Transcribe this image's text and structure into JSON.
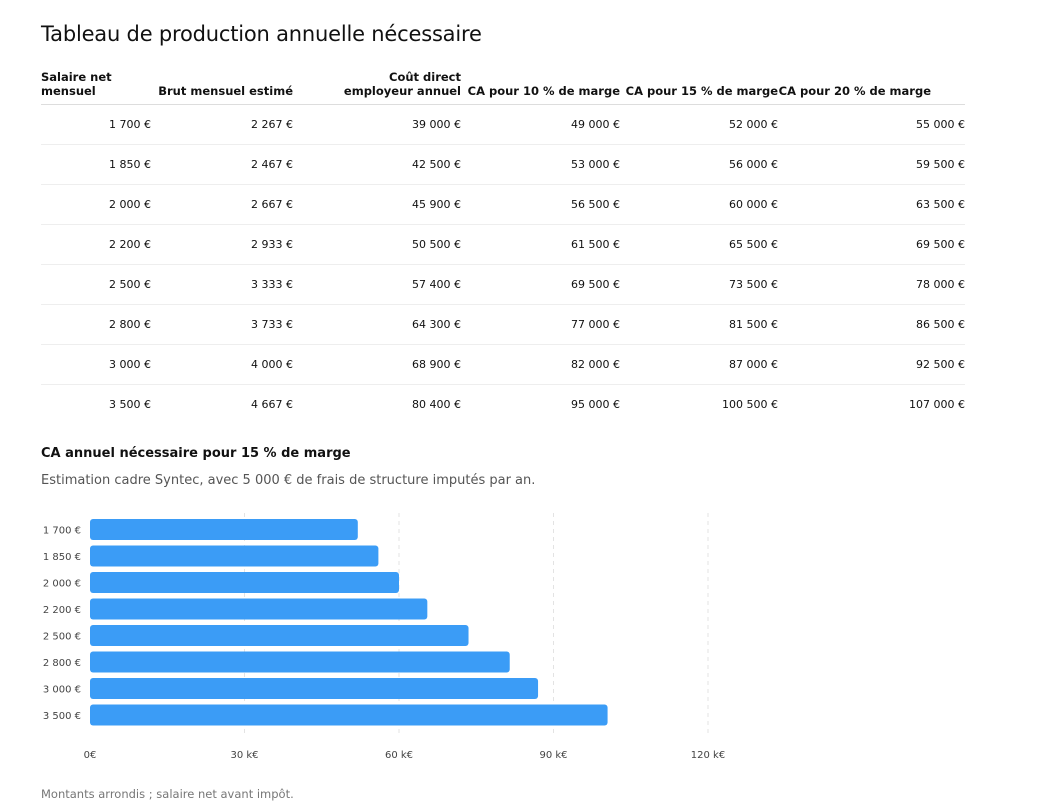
{
  "title": "Tableau de production annuelle nécessaire",
  "table": {
    "headers": [
      "Salaire net mensuel",
      "Brut mensuel estimé",
      "Coût direct employeur annuel",
      "CA pour 10 % de marge",
      "CA pour 15 % de marge",
      "CA pour 20 % de marge"
    ],
    "rows": [
      [
        "1 700 €",
        "2 267 €",
        "39 000 €",
        "49 000 €",
        "52 000 €",
        "55 000 €"
      ],
      [
        "1 850 €",
        "2 467 €",
        "42 500 €",
        "53 000 €",
        "56 000 €",
        "59 500 €"
      ],
      [
        "2 000 €",
        "2 667 €",
        "45 900 €",
        "56 500 €",
        "60 000 €",
        "63 500 €"
      ],
      [
        "2 200 €",
        "2 933 €",
        "50 500 €",
        "61 500 €",
        "65 500 €",
        "69 500 €"
      ],
      [
        "2 500 €",
        "3 333 €",
        "57 400 €",
        "69 500 €",
        "73 500 €",
        "78 000 €"
      ],
      [
        "2 800 €",
        "3 733 €",
        "64 300 €",
        "77 000 €",
        "81 500 €",
        "86 500 €"
      ],
      [
        "3 000 €",
        "4 000 €",
        "68 900 €",
        "82 000 €",
        "87 000 €",
        "92 500 €"
      ],
      [
        "3 500 €",
        "4 667 €",
        "80 400 €",
        "95 000 €",
        "100 500 €",
        "107 000 €"
      ]
    ]
  },
  "chart_data": {
    "type": "bar",
    "orientation": "horizontal",
    "title": "CA annuel nécessaire pour 15 % de marge",
    "subtitle": "Estimation cadre Syntec, avec 5 000 € de frais de structure imputés par an.",
    "categories": [
      "1 700 €",
      "1 850 €",
      "2 000 €",
      "2 200 €",
      "2 500 €",
      "2 800 €",
      "3 000 €",
      "3 500 €"
    ],
    "values": [
      52000,
      56000,
      60000,
      65500,
      73500,
      81500,
      87000,
      100500
    ],
    "xlim": [
      0,
      120000
    ],
    "xticks": [
      0,
      30000,
      60000,
      90000,
      120000
    ],
    "xtick_labels": [
      "0€",
      "30 k€",
      "60 k€",
      "90 k€",
      "120 k€"
    ],
    "grid": "vertical dashed",
    "bar_color": "#3b9cf6"
  },
  "footnote": "Montants arrondis ; salaire net avant impôt."
}
